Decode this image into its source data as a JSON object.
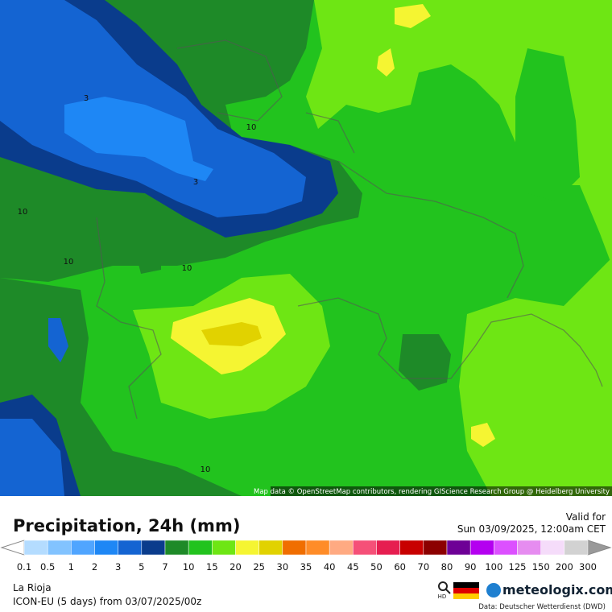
{
  "map": {
    "attribution": "Map data © OpenStreetMap contributors, rendering GIScience Research Group @ Heidelberg University",
    "contour_labels": [
      "3",
      "10",
      "3",
      "10",
      "10",
      "10",
      "10"
    ]
  },
  "header": {
    "title": "Precipitation, 24h (mm)",
    "valid_label": "Valid for",
    "valid_time": "Sun 03/09/2025, 12:00am CET"
  },
  "legend": {
    "ticks": [
      "0.1",
      "0.5",
      "1",
      "2",
      "3",
      "5",
      "7",
      "10",
      "15",
      "20",
      "25",
      "30",
      "35",
      "40",
      "45",
      "50",
      "60",
      "70",
      "80",
      "90",
      "100",
      "125",
      "150",
      "200",
      "300"
    ],
    "colors": [
      "#b4dcff",
      "#82c3ff",
      "#50a5ff",
      "#1e87f5",
      "#1464d2",
      "#0a3c8c",
      "#1e8a28",
      "#22c31e",
      "#6ee614",
      "#f5f532",
      "#e1d200",
      "#f06e00",
      "#ff8c28",
      "#ffaa82",
      "#f55078",
      "#e61e50",
      "#c80000",
      "#8c0000",
      "#6e0096",
      "#b400f0",
      "#dc50ff",
      "#e68cf0",
      "#f5dcfa",
      "#d2d2d2"
    ]
  },
  "footer": {
    "region": "La Rioja",
    "model": "ICON-EU (5 days) from 03/07/2025/00z",
    "hd": "HD",
    "brand": "meteologix.com",
    "source": "Data: Deutscher Wetterdienst (DWD)"
  }
}
